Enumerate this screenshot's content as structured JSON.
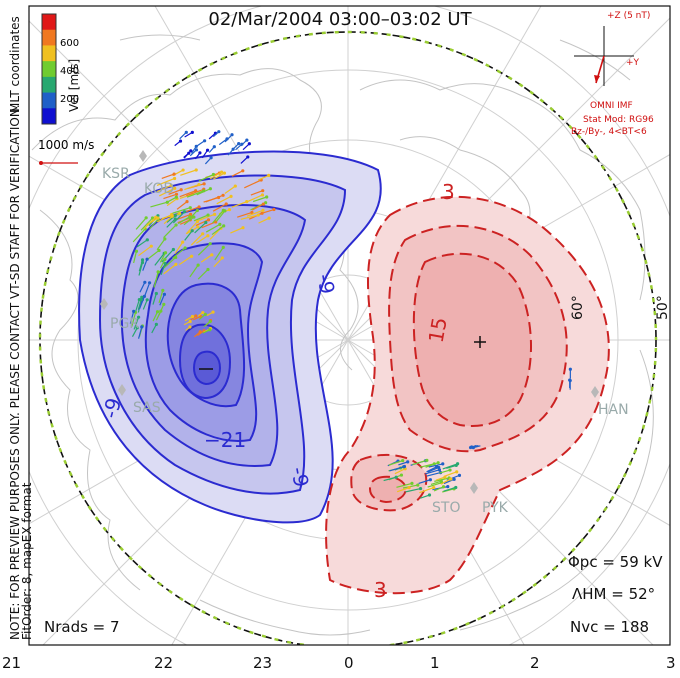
{
  "title": "02/Mar/2004 03:00–03:02 UT",
  "legend": {
    "unit_label": "Vel [m/s]",
    "ticks": [
      "600",
      "400",
      "200"
    ],
    "colors": [
      "#e01818",
      "#f07820",
      "#f0c020",
      "#70cc30",
      "#28a870",
      "#2060c8",
      "#1010d0"
    ]
  },
  "velocity_scale": "1000 m/s",
  "imf": {
    "z_label": "+Z (5 nT)",
    "y_label": "+Y",
    "source": "OMNI IMF",
    "model": "Stat Mod: RG96",
    "condition": "Bz-/By-, 4<BT<6"
  },
  "notes": {
    "preview": "NOTE: FOR PREVIEW PURPOSES ONLY. PLEASE CONTACT VT-SD STAFF FOR VERIFICATION.",
    "coords": "MLT coordinates",
    "fit": "FitOrder: 8, mapEX format"
  },
  "stats": {
    "phi_pc": "Φpc = 59 kV",
    "lambda_hm": "ΛHM = 52°",
    "n_vc": "Nvc = 188",
    "n_rads": "Nrads = 7"
  },
  "mlt_ticks": [
    "21",
    "22",
    "23",
    "0",
    "1",
    "2",
    "3"
  ],
  "lat_labels": [
    "60°",
    "50°"
  ],
  "contour_labels": {
    "neg": [
      "-9",
      "-9",
      "-9",
      "−21"
    ],
    "pos": [
      "3",
      "15",
      "3"
    ]
  },
  "sites": [
    "KSR",
    "KOD",
    "PGR",
    "SAS",
    "STO",
    "PYK",
    "HAN"
  ],
  "colors": {
    "negative": "#2b2bd0",
    "positive": "#cc2222",
    "boundary": "#9acd32",
    "map_lines": "#c8c8c8"
  }
}
